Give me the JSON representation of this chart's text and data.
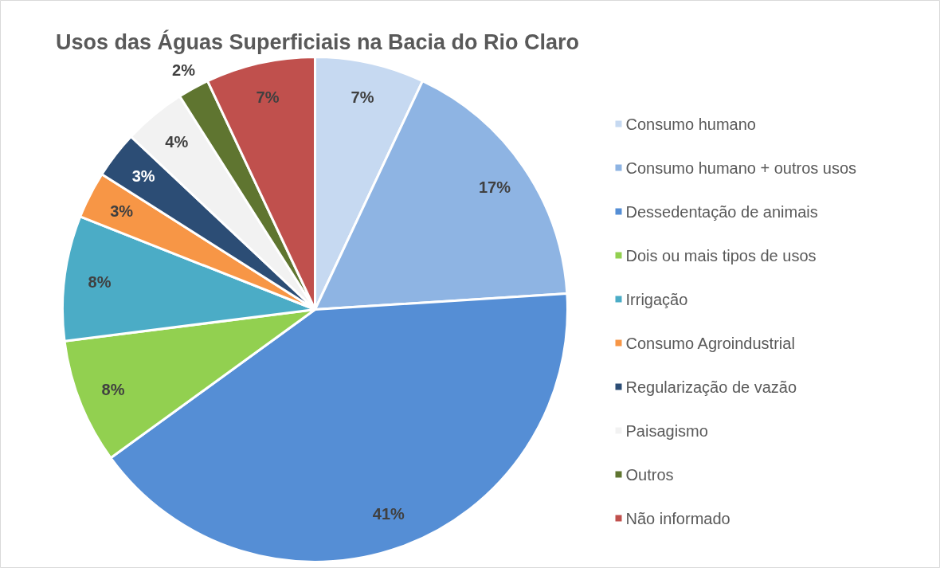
{
  "chart_data": {
    "type": "pie",
    "title": "Usos das Águas Superficiais na Bacia do Rio Claro",
    "categories": [
      "Consumo humano",
      "Consumo humano + outros usos",
      "Dessedentação de animais",
      "Dois ou mais tipos de usos",
      "Irrigação",
      "Consumo Agroindustrial",
      "Regularização de vazão",
      "Paisagismo",
      "Outros",
      "Não informado"
    ],
    "values": [
      7,
      17,
      41,
      8,
      8,
      3,
      3,
      4,
      2,
      7
    ],
    "value_labels": [
      "7%",
      "17%",
      "41%",
      "8%",
      "8%",
      "3%",
      "3%",
      "4%",
      "2%",
      "7%"
    ],
    "colors": [
      "#c6d9f1",
      "#8eb4e3",
      "#558ed5",
      "#92d050",
      "#4bacc6",
      "#f79646",
      "#2c4d75",
      "#f2f2f2",
      "#5f7530",
      "#c0504d"
    ],
    "legend": "right"
  }
}
